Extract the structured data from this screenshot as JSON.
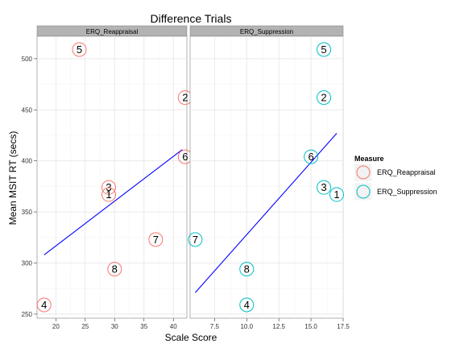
{
  "chart_data": {
    "type": "scatter",
    "title": "Difference Trials",
    "xlabel": "Scale Score",
    "ylabel": "Mean MSIT RT (secs)",
    "ylim": [
      246,
      522
    ],
    "yticks": [
      250,
      300,
      350,
      400,
      450,
      500
    ],
    "grid": true,
    "legend": {
      "title": "Measure",
      "placement": "right",
      "entries": [
        {
          "label": "ERQ_Reappraisal",
          "color": "#F8766D"
        },
        {
          "label": "ERQ_Suppression",
          "color": "#00BFC4"
        }
      ]
    },
    "fit_line_color": "#0000FF",
    "facets": [
      {
        "strip_label": "ERQ_Reappraisal",
        "color": "#F8766D",
        "xlim": [
          16.8,
          42.3
        ],
        "xticks": [
          20,
          25,
          30,
          35,
          40
        ],
        "xtick_labels": [
          "20",
          "25",
          "30",
          "35",
          "40"
        ],
        "points": [
          {
            "label": "5",
            "x": 24,
            "y": 509
          },
          {
            "label": "2",
            "x": 42,
            "y": 462
          },
          {
            "label": "6",
            "x": 42,
            "y": 404
          },
          {
            "label": "3",
            "x": 29,
            "y": 374
          },
          {
            "label": "1",
            "x": 29,
            "y": 367
          },
          {
            "label": "7",
            "x": 37,
            "y": 323
          },
          {
            "label": "8",
            "x": 30,
            "y": 294
          },
          {
            "label": "4",
            "x": 18,
            "y": 259
          }
        ],
        "fit_line": [
          {
            "x": 18,
            "y": 308
          },
          {
            "x": 41.5,
            "y": 411
          }
        ]
      },
      {
        "strip_label": "ERQ_Suppression",
        "color": "#00BFC4",
        "xlim": [
          5.6,
          17.5
        ],
        "xticks": [
          7.5,
          10,
          12.5,
          15,
          17.5
        ],
        "xtick_labels": [
          "7.5",
          "10.0",
          "12.5",
          "15.0",
          "17.5"
        ],
        "points": [
          {
            "label": "5",
            "x": 16,
            "y": 509
          },
          {
            "label": "2",
            "x": 16,
            "y": 462
          },
          {
            "label": "6",
            "x": 15,
            "y": 404
          },
          {
            "label": "3",
            "x": 16,
            "y": 374
          },
          {
            "label": "1",
            "x": 17,
            "y": 367
          },
          {
            "label": "7",
            "x": 6,
            "y": 323
          },
          {
            "label": "8",
            "x": 10,
            "y": 294
          },
          {
            "label": "4",
            "x": 10,
            "y": 259
          }
        ],
        "fit_line": [
          {
            "x": 6,
            "y": 271
          },
          {
            "x": 17,
            "y": 427
          }
        ]
      }
    ]
  }
}
